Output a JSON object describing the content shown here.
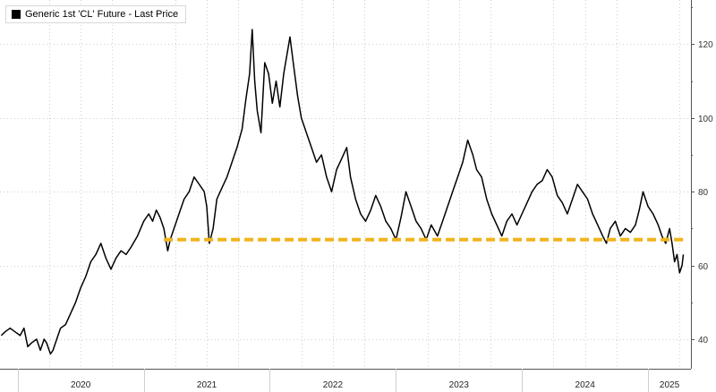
{
  "chart_data": {
    "type": "line",
    "title": "",
    "xlabel": "",
    "ylabel": "",
    "legend": {
      "placement": "top-left",
      "entries": [
        "Generic 1st 'CL' Future - Last Price"
      ]
    },
    "xlim": [
      2019.86,
      2025.34
    ],
    "ylim": [
      32,
      132
    ],
    "grid": true,
    "y_ticks": [
      40,
      60,
      80,
      100,
      120
    ],
    "x_tick_labels": [
      "2020",
      "2021",
      "2022",
      "2023",
      "2024",
      "2025"
    ],
    "series": [
      {
        "name": "Generic 1st 'CL' Future - Last Price",
        "color": "#000000",
        "points": [
          [
            2019.87,
            41
          ],
          [
            2019.9,
            42
          ],
          [
            2019.94,
            43
          ],
          [
            2019.98,
            42
          ],
          [
            2020.02,
            41
          ],
          [
            2020.05,
            43
          ],
          [
            2020.08,
            38
          ],
          [
            2020.11,
            39
          ],
          [
            2020.15,
            40
          ],
          [
            2020.18,
            37
          ],
          [
            2020.21,
            40
          ],
          [
            2020.23,
            39
          ],
          [
            2020.26,
            36
          ],
          [
            2020.28,
            37
          ],
          [
            2020.31,
            40
          ],
          [
            2020.34,
            43
          ],
          [
            2020.38,
            44
          ],
          [
            2020.42,
            47
          ],
          [
            2020.46,
            50
          ],
          [
            2020.5,
            54
          ],
          [
            2020.54,
            57
          ],
          [
            2020.58,
            61
          ],
          [
            2020.62,
            63
          ],
          [
            2020.66,
            66
          ],
          [
            2020.7,
            62
          ],
          [
            2020.74,
            59
          ],
          [
            2020.78,
            62
          ],
          [
            2020.82,
            64
          ],
          [
            2020.86,
            63
          ],
          [
            2020.9,
            65
          ],
          [
            2020.95,
            68
          ],
          [
            2021.0,
            72
          ],
          [
            2021.04,
            74
          ],
          [
            2021.07,
            72
          ],
          [
            2021.1,
            75
          ],
          [
            2021.13,
            73
          ],
          [
            2021.16,
            70
          ],
          [
            2021.19,
            64
          ],
          [
            2021.21,
            67
          ],
          [
            2021.24,
            70
          ],
          [
            2021.28,
            74
          ],
          [
            2021.32,
            78
          ],
          [
            2021.36,
            80
          ],
          [
            2021.4,
            84
          ],
          [
            2021.44,
            82
          ],
          [
            2021.48,
            80
          ],
          [
            2021.5,
            76
          ],
          [
            2021.52,
            66
          ],
          [
            2021.55,
            70
          ],
          [
            2021.58,
            78
          ],
          [
            2021.62,
            81
          ],
          [
            2021.66,
            84
          ],
          [
            2021.7,
            88
          ],
          [
            2021.74,
            92
          ],
          [
            2021.78,
            97
          ],
          [
            2021.81,
            105
          ],
          [
            2021.84,
            112
          ],
          [
            2021.86,
            124
          ],
          [
            2021.88,
            110
          ],
          [
            2021.9,
            102
          ],
          [
            2021.93,
            96
          ],
          [
            2021.96,
            115
          ],
          [
            2021.99,
            112
          ],
          [
            2022.02,
            104
          ],
          [
            2022.05,
            110
          ],
          [
            2022.08,
            103
          ],
          [
            2022.11,
            112
          ],
          [
            2022.14,
            118
          ],
          [
            2022.16,
            122
          ],
          [
            2022.19,
            114
          ],
          [
            2022.22,
            106
          ],
          [
            2022.25,
            100
          ],
          [
            2022.29,
            96
          ],
          [
            2022.33,
            92
          ],
          [
            2022.37,
            88
          ],
          [
            2022.41,
            90
          ],
          [
            2022.45,
            84
          ],
          [
            2022.49,
            80
          ],
          [
            2022.53,
            86
          ],
          [
            2022.57,
            89
          ],
          [
            2022.61,
            92
          ],
          [
            2022.64,
            84
          ],
          [
            2022.68,
            78
          ],
          [
            2022.72,
            74
          ],
          [
            2022.76,
            72
          ],
          [
            2022.8,
            75
          ],
          [
            2022.84,
            79
          ],
          [
            2022.88,
            76
          ],
          [
            2022.92,
            72
          ],
          [
            2022.96,
            70
          ],
          [
            2023.0,
            67
          ],
          [
            2023.04,
            73
          ],
          [
            2023.08,
            80
          ],
          [
            2023.12,
            76
          ],
          [
            2023.16,
            72
          ],
          [
            2023.2,
            70
          ],
          [
            2023.24,
            67
          ],
          [
            2023.28,
            71
          ],
          [
            2023.33,
            68
          ],
          [
            2023.37,
            72
          ],
          [
            2023.41,
            76
          ],
          [
            2023.45,
            80
          ],
          [
            2023.49,
            84
          ],
          [
            2023.53,
            88
          ],
          [
            2023.57,
            94
          ],
          [
            2023.61,
            90
          ],
          [
            2023.64,
            86
          ],
          [
            2023.68,
            84
          ],
          [
            2023.72,
            78
          ],
          [
            2023.76,
            74
          ],
          [
            2023.8,
            71
          ],
          [
            2023.84,
            68
          ],
          [
            2023.88,
            72
          ],
          [
            2023.92,
            74
          ],
          [
            2023.96,
            71
          ],
          [
            2024.0,
            74
          ],
          [
            2024.04,
            77
          ],
          [
            2024.08,
            80
          ],
          [
            2024.12,
            82
          ],
          [
            2024.16,
            83
          ],
          [
            2024.2,
            86
          ],
          [
            2024.24,
            84
          ],
          [
            2024.28,
            79
          ],
          [
            2024.32,
            77
          ],
          [
            2024.36,
            74
          ],
          [
            2024.4,
            78
          ],
          [
            2024.44,
            82
          ],
          [
            2024.48,
            80
          ],
          [
            2024.52,
            78
          ],
          [
            2024.56,
            74
          ],
          [
            2024.6,
            71
          ],
          [
            2024.64,
            68
          ],
          [
            2024.67,
            66
          ],
          [
            2024.7,
            70
          ],
          [
            2024.74,
            72
          ],
          [
            2024.78,
            68
          ],
          [
            2024.82,
            70
          ],
          [
            2024.86,
            69
          ],
          [
            2024.9,
            71
          ],
          [
            2024.93,
            75
          ],
          [
            2024.96,
            80
          ],
          [
            2025.0,
            76
          ],
          [
            2025.04,
            74
          ],
          [
            2025.08,
            71
          ],
          [
            2025.11,
            68
          ],
          [
            2025.14,
            66
          ],
          [
            2025.17,
            70
          ],
          [
            2025.19,
            66
          ],
          [
            2025.21,
            61
          ],
          [
            2025.23,
            63
          ],
          [
            2025.25,
            58
          ],
          [
            2025.27,
            60
          ],
          [
            2025.28,
            63
          ]
        ]
      },
      {
        "name": "",
        "color": "#f0b41e",
        "style": "dashed",
        "points": [
          [
            2021.16,
            67
          ],
          [
            2025.3,
            67
          ]
        ]
      }
    ]
  },
  "colors": {
    "price_line": "#000000",
    "support_line": "#f0b41e",
    "grid": "#cfcfcf",
    "axis": "#555555"
  }
}
